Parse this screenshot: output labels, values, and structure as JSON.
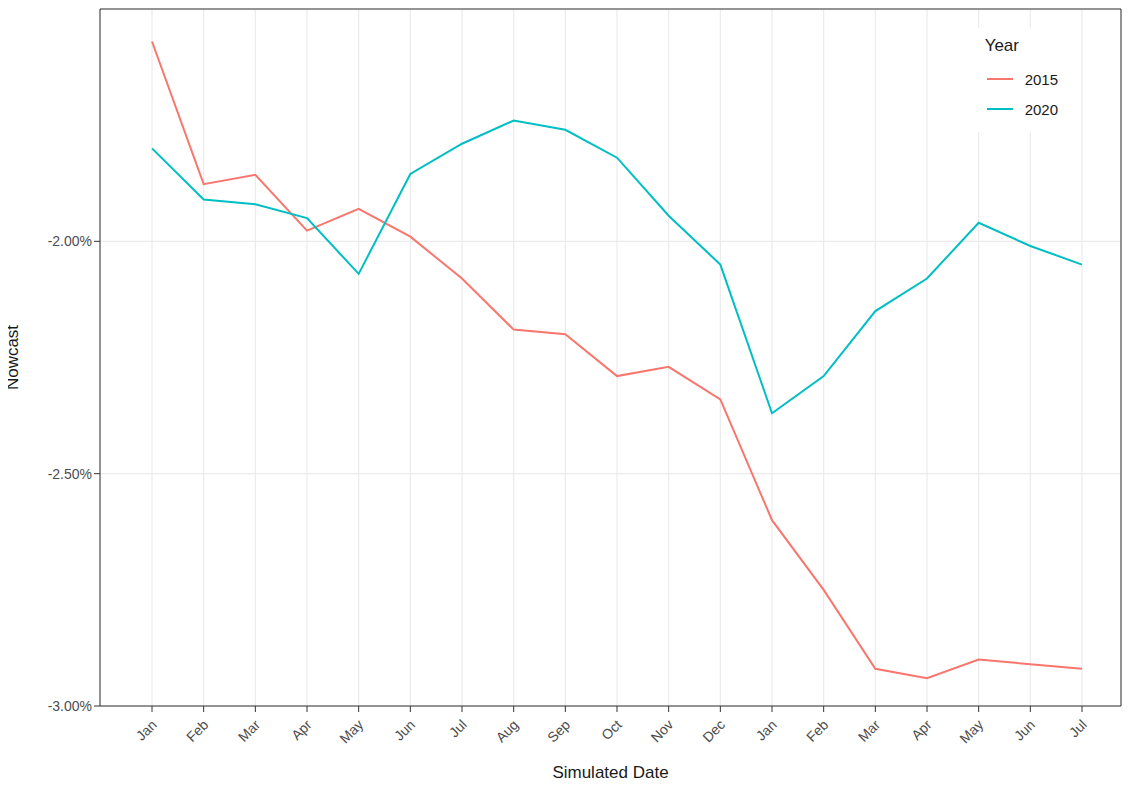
{
  "chart_data": {
    "type": "line",
    "x_label": "Simulated Date",
    "y_label": "Nowcast",
    "legend_title": "Year",
    "categories": [
      "Jan",
      "Feb",
      "Mar",
      "Apr",
      "May",
      "Jun",
      "Jul",
      "Aug",
      "Sep",
      "Oct",
      "Nov",
      "Dec",
      "Jan",
      "Feb",
      "Mar",
      "Apr",
      "May",
      "Jun",
      "Jul"
    ],
    "series": [
      {
        "name": "2015",
        "color": "#F8766D",
        "values": [
          -1.57,
          -1.877,
          -1.857,
          -1.977,
          -1.93,
          -1.99,
          -2.08,
          -2.19,
          -2.2,
          -2.29,
          -2.27,
          -2.34,
          -2.6,
          -2.75,
          -2.92,
          -2.94,
          -2.9,
          -2.91,
          -2.92
        ]
      },
      {
        "name": "2020",
        "color": "#00BFC4",
        "values": [
          -1.8,
          -1.91,
          -1.92,
          -1.95,
          -2.07,
          -1.855,
          -1.79,
          -1.74,
          -1.76,
          -1.82,
          -1.945,
          -2.05,
          -2.37,
          -2.29,
          -2.15,
          -2.08,
          -1.96,
          -2.01,
          -2.05
        ]
      }
    ],
    "ylim": [
      -3.0,
      -1.5
    ],
    "yticks": [
      {
        "value": -3.0,
        "label": "-3.00%"
      },
      {
        "value": -2.5,
        "label": "-2.50%"
      },
      {
        "value": -2.0,
        "label": "-2.00%"
      }
    ],
    "grid": true,
    "legend": "top-right"
  }
}
